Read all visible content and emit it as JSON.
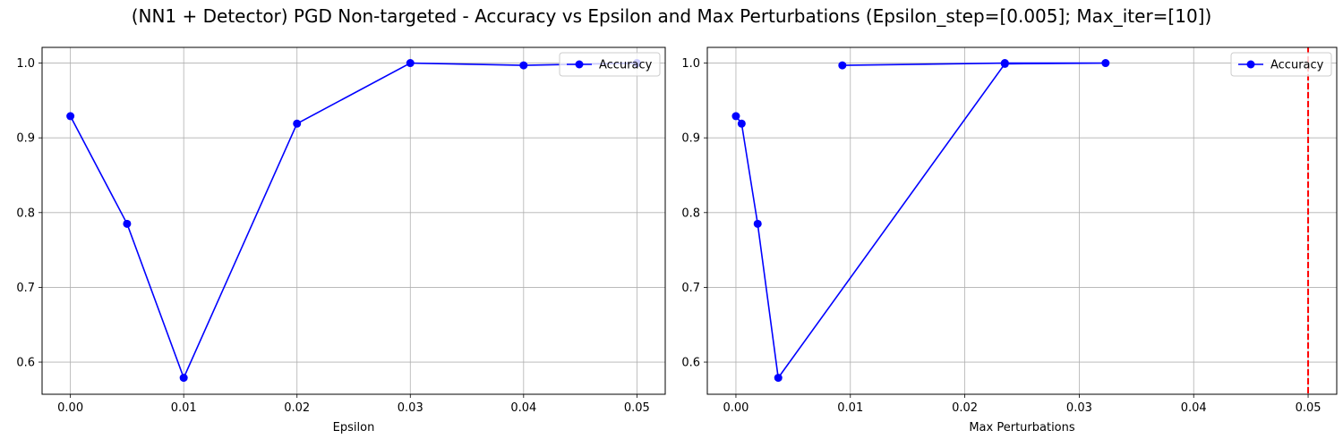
{
  "figure": {
    "title": "(NN1 + Detector) PGD Non-targeted - Accuracy vs Epsilon and Max Perturbations (Epsilon_step=[0.005]; Max_iter=[10])"
  },
  "colors": {
    "series": "#0000ff",
    "reference_line": "#ff0000",
    "grid": "#b0b0b0"
  },
  "chart_data": [
    {
      "type": "line",
      "xlabel": "Epsilon",
      "ylabel": "",
      "xlim": [
        -0.0025,
        0.0525
      ],
      "ylim": [
        0.557,
        1.021
      ],
      "xticks": [
        0.0,
        0.01,
        0.02,
        0.03,
        0.04,
        0.05
      ],
      "xtick_labels": [
        "0.00",
        "0.01",
        "0.02",
        "0.03",
        "0.04",
        "0.05"
      ],
      "yticks": [
        0.6,
        0.7,
        0.8,
        0.9,
        1.0
      ],
      "ytick_labels": [
        "0.6",
        "0.7",
        "0.8",
        "0.9",
        "1.0"
      ],
      "grid": true,
      "legend_position": "top-right",
      "series": [
        {
          "name": "Accuracy",
          "marker": "circle",
          "x": [
            0.0,
            0.005,
            0.01,
            0.02,
            0.03,
            0.04,
            0.05
          ],
          "y": [
            0.929,
            0.785,
            0.579,
            0.919,
            1.0,
            0.997,
            1.0
          ]
        }
      ]
    },
    {
      "type": "line",
      "xlabel": "Max Perturbations",
      "ylabel": "",
      "xlim": [
        -0.0025,
        0.0525
      ],
      "ylim": [
        0.557,
        1.021
      ],
      "xticks": [
        0.0,
        0.01,
        0.02,
        0.03,
        0.04,
        0.05
      ],
      "xtick_labels": [
        "0.00",
        "0.01",
        "0.02",
        "0.03",
        "0.04",
        "0.05"
      ],
      "yticks": [
        0.6,
        0.7,
        0.8,
        0.9,
        1.0
      ],
      "ytick_labels": [
        "0.6",
        "0.7",
        "0.8",
        "0.9",
        "1.0"
      ],
      "grid": true,
      "legend_position": "top-right",
      "vertical_reference_line": {
        "x": 0.05,
        "style": "dashed"
      },
      "series": [
        {
          "name": "Accuracy",
          "marker": "circle",
          "x": [
            0.0,
            0.0005,
            0.0019,
            0.0037,
            0.0235,
            0.0323,
            0.0235,
            0.0093
          ],
          "y": [
            0.929,
            0.919,
            0.785,
            0.579,
            0.999,
            1.0,
            1.0,
            0.997
          ]
        }
      ]
    }
  ]
}
